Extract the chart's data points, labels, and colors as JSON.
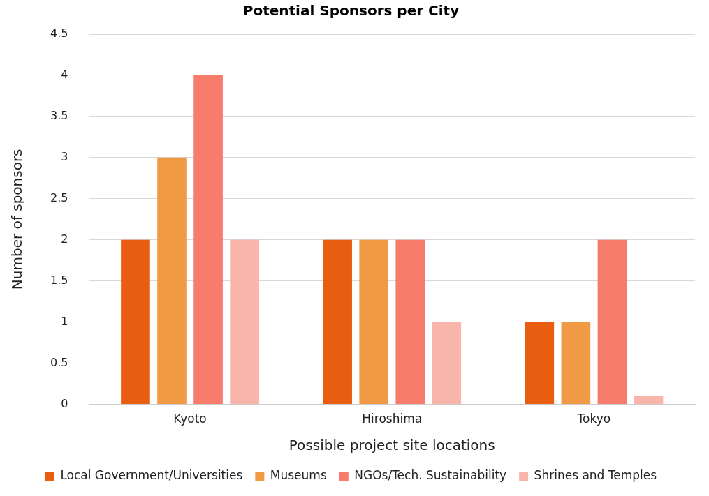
{
  "chart_data": {
    "type": "bar",
    "title": "Potential Sponsors per City",
    "xlabel": "Possible project site locations",
    "ylabel": "Number of sponsors",
    "categories": [
      "Kyoto",
      "Hiroshima",
      "Tokyo"
    ],
    "series": [
      {
        "name": "Local Government/Universities",
        "color": "#e85d10",
        "values": [
          2,
          2,
          1
        ]
      },
      {
        "name": "Museums",
        "color": "#f19a46",
        "values": [
          3,
          2,
          1
        ]
      },
      {
        "name": "NGOs/Tech. Sustainability",
        "color": "#f77c6c",
        "values": [
          4,
          2,
          2
        ]
      },
      {
        "name": "Shrines and Temples",
        "color": "#f9b5ac",
        "values": [
          2,
          1,
          0.1
        ]
      }
    ],
    "ylim": [
      0,
      4.5
    ],
    "yticks": [
      0,
      0.5,
      1,
      1.5,
      2,
      2.5,
      3,
      3.5,
      4,
      4.5
    ],
    "grid": "y",
    "legend": "bottom"
  }
}
